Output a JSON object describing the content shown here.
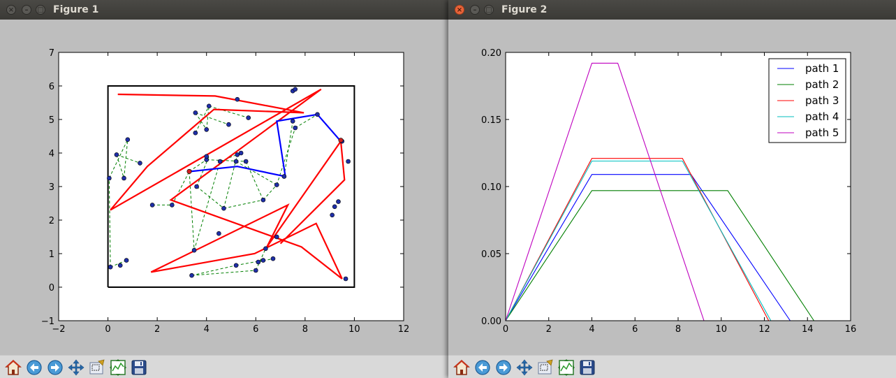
{
  "windows": [
    {
      "title": "Figure 1",
      "active": false,
      "chart_data": {
        "type": "scatter",
        "xlim": [
          -2,
          12
        ],
        "ylim": [
          -1,
          7
        ],
        "xticks": [
          -2,
          0,
          2,
          4,
          6,
          8,
          10,
          12
        ],
        "yticks": [
          -1,
          0,
          1,
          2,
          3,
          4,
          5,
          6,
          7
        ],
        "xtick_labels": [
          "−2",
          "0",
          "2",
          "4",
          "6",
          "8",
          "10",
          "12"
        ],
        "ytick_labels": [
          "−1",
          "0",
          "1",
          "2",
          "3",
          "4",
          "5",
          "6",
          "7"
        ],
        "boundary_rect": [
          [
            0,
            0
          ],
          [
            10,
            0
          ],
          [
            10,
            6
          ],
          [
            0,
            6
          ],
          [
            0,
            0
          ]
        ],
        "points": [
          [
            0.1,
            0.6
          ],
          [
            0.5,
            0.65
          ],
          [
            0.75,
            0.8
          ],
          [
            0.05,
            3.25
          ],
          [
            0.35,
            3.95
          ],
          [
            0.65,
            3.25
          ],
          [
            0.8,
            4.4
          ],
          [
            1.3,
            3.7
          ],
          [
            1.8,
            2.45
          ],
          [
            2.6,
            2.45
          ],
          [
            3.5,
            1.1
          ],
          [
            3.6,
            3.0
          ],
          [
            3.55,
            4.6
          ],
          [
            3.55,
            5.2
          ],
          [
            4.0,
            4.7
          ],
          [
            4.1,
            5.4
          ],
          [
            4.0,
            3.8
          ],
          [
            4.0,
            3.9
          ],
          [
            4.55,
            3.75
          ],
          [
            4.7,
            2.35
          ],
          [
            4.9,
            4.85
          ],
          [
            5.25,
            3.95
          ],
          [
            5.25,
            5.6
          ],
          [
            5.2,
            3.75
          ],
          [
            5.4,
            4.0
          ],
          [
            5.6,
            3.75
          ],
          [
            5.7,
            5.05
          ],
          [
            3.4,
            0.35
          ],
          [
            4.5,
            1.6
          ],
          [
            5.2,
            0.65
          ],
          [
            6.0,
            0.5
          ],
          [
            6.1,
            0.75
          ],
          [
            6.3,
            0.8
          ],
          [
            6.4,
            1.15
          ],
          [
            6.3,
            2.6
          ],
          [
            6.7,
            0.85
          ],
          [
            6.85,
            3.05
          ],
          [
            6.85,
            1.5
          ],
          [
            7.15,
            3.3
          ],
          [
            7.5,
            4.95
          ],
          [
            7.5,
            5.85
          ],
          [
            7.6,
            5.9
          ],
          [
            7.6,
            4.75
          ],
          [
            8.5,
            5.15
          ],
          [
            9.1,
            2.15
          ],
          [
            9.2,
            2.4
          ],
          [
            9.35,
            2.55
          ],
          [
            9.65,
            0.25
          ],
          [
            9.75,
            3.75
          ],
          [
            9.5,
            4.35
          ],
          [
            3.3,
            3.45
          ]
        ],
        "red_path": [
          [
            0.4,
            5.75
          ],
          [
            4.35,
            5.7
          ],
          [
            7.95,
            5.2
          ],
          [
            4.3,
            5.3
          ],
          [
            1.6,
            3.6
          ],
          [
            0.1,
            2.3
          ],
          [
            8.65,
            5.9
          ],
          [
            2.55,
            2.6
          ],
          [
            7.85,
            1.2
          ],
          [
            9.5,
            0.25
          ],
          [
            8.45,
            1.9
          ],
          [
            5.95,
            1.0
          ],
          [
            1.75,
            0.45
          ],
          [
            7.3,
            2.45
          ],
          [
            6.45,
            1.2
          ],
          [
            9.45,
            4.35
          ],
          [
            9.6,
            3.2
          ],
          [
            7.0,
            1.3
          ]
        ],
        "blue_path": [
          [
            3.35,
            3.45
          ],
          [
            5.25,
            3.6
          ],
          [
            7.2,
            3.3
          ],
          [
            6.85,
            4.95
          ],
          [
            8.5,
            5.15
          ],
          [
            9.45,
            4.35
          ]
        ],
        "red_dots": [
          [
            3.3,
            3.45
          ],
          [
            9.45,
            4.38
          ]
        ],
        "green_dashed_segments": [
          [
            [
              0.1,
              0.6
            ],
            [
              0.05,
              3.25
            ]
          ],
          [
            [
              0.1,
              0.6
            ],
            [
              0.75,
              0.8
            ]
          ],
          [
            [
              0.05,
              3.25
            ],
            [
              0.8,
              4.4
            ]
          ],
          [
            [
              0.35,
              3.95
            ],
            [
              1.3,
              3.7
            ]
          ],
          [
            [
              0.65,
              3.25
            ],
            [
              0.8,
              4.4
            ]
          ],
          [
            [
              0.35,
              3.95
            ],
            [
              0.65,
              3.25
            ]
          ],
          [
            [
              1.8,
              2.45
            ],
            [
              2.6,
              2.45
            ]
          ],
          [
            [
              2.6,
              2.45
            ],
            [
              3.3,
              3.45
            ]
          ],
          [
            [
              3.3,
              3.45
            ],
            [
              4.0,
              3.8
            ]
          ],
          [
            [
              3.6,
              3.0
            ],
            [
              4.1,
              3.9
            ]
          ],
          [
            [
              3.6,
              3.0
            ],
            [
              4.7,
              2.35
            ]
          ],
          [
            [
              4.7,
              2.35
            ],
            [
              5.25,
              3.95
            ]
          ],
          [
            [
              4.7,
              2.35
            ],
            [
              6.3,
              2.6
            ]
          ],
          [
            [
              6.3,
              2.6
            ],
            [
              5.6,
              3.75
            ]
          ],
          [
            [
              6.3,
              2.6
            ],
            [
              6.85,
              3.05
            ]
          ],
          [
            [
              3.3,
              3.45
            ],
            [
              3.5,
              1.1
            ]
          ],
          [
            [
              3.5,
              1.1
            ],
            [
              4.55,
              3.75
            ]
          ],
          [
            [
              4.0,
              3.8
            ],
            [
              5.6,
              3.75
            ]
          ],
          [
            [
              4.55,
              3.75
            ],
            [
              5.4,
              4.0
            ]
          ],
          [
            [
              5.2,
              3.75
            ],
            [
              6.85,
              3.05
            ]
          ],
          [
            [
              6.85,
              3.05
            ],
            [
              7.6,
              4.75
            ]
          ],
          [
            [
              7.6,
              4.75
            ],
            [
              8.5,
              5.15
            ]
          ],
          [
            [
              7.15,
              3.3
            ],
            [
              7.5,
              4.95
            ]
          ],
          [
            [
              3.55,
              4.6
            ],
            [
              4.1,
              5.4
            ]
          ],
          [
            [
              3.55,
              5.2
            ],
            [
              4.9,
              4.85
            ]
          ],
          [
            [
              4.0,
              4.7
            ],
            [
              4.1,
              5.4
            ]
          ],
          [
            [
              4.1,
              5.4
            ],
            [
              5.7,
              5.05
            ]
          ],
          [
            [
              3.55,
              5.2
            ],
            [
              4.0,
              4.7
            ]
          ],
          [
            [
              3.4,
              0.35
            ],
            [
              5.2,
              0.65
            ]
          ],
          [
            [
              5.2,
              0.65
            ],
            [
              6.3,
              0.8
            ]
          ],
          [
            [
              6.0,
              0.5
            ],
            [
              6.4,
              1.15
            ]
          ],
          [
            [
              6.1,
              0.75
            ],
            [
              6.7,
              0.85
            ]
          ],
          [
            [
              3.4,
              0.35
            ],
            [
              6.0,
              0.5
            ]
          ]
        ]
      }
    },
    {
      "title": "Figure 2",
      "active": true,
      "chart_data": {
        "type": "line",
        "xlim": [
          0,
          16
        ],
        "ylim": [
          0.0,
          0.2
        ],
        "xticks": [
          0,
          2,
          4,
          6,
          8,
          10,
          12,
          14,
          16
        ],
        "yticks": [
          0.0,
          0.05,
          0.1,
          0.15,
          0.2
        ],
        "xtick_labels": [
          "0",
          "2",
          "4",
          "6",
          "8",
          "10",
          "12",
          "14",
          "16"
        ],
        "ytick_labels": [
          "0.00",
          "0.05",
          "0.10",
          "0.15",
          "0.20"
        ],
        "legend_position": "top-right",
        "series": [
          {
            "name": "path 1",
            "color": "#0000ff",
            "x": [
              0,
              4.0,
              8.6,
              13.2
            ],
            "y": [
              0,
              0.109,
              0.109,
              0
            ]
          },
          {
            "name": "path 2",
            "color": "#007f00",
            "x": [
              0,
              4.0,
              10.3,
              14.3
            ],
            "y": [
              0,
              0.097,
              0.097,
              0
            ]
          },
          {
            "name": "path 3",
            "color": "#ff0000",
            "x": [
              0,
              4.0,
              8.2,
              12.2
            ],
            "y": [
              0,
              0.121,
              0.121,
              0
            ]
          },
          {
            "name": "path 4",
            "color": "#00bfbf",
            "x": [
              0,
              4.0,
              8.2,
              12.3
            ],
            "y": [
              0,
              0.119,
              0.119,
              0
            ]
          },
          {
            "name": "path 5",
            "color": "#bf00bf",
            "x": [
              0,
              4.0,
              5.2,
              9.2
            ],
            "y": [
              0,
              0.192,
              0.192,
              0
            ]
          }
        ]
      }
    }
  ],
  "toolbar_icons": [
    "home-icon",
    "back-icon",
    "forward-icon",
    "pan-icon",
    "zoom-icon",
    "subplots-icon",
    "save-icon"
  ]
}
